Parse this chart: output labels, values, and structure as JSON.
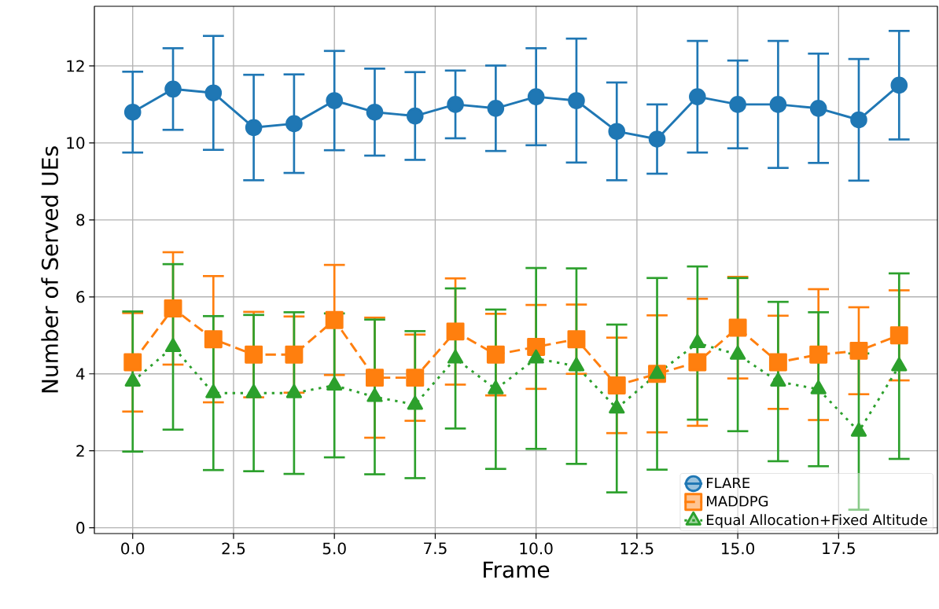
{
  "chart_data": {
    "type": "line",
    "xlabel": "Frame",
    "ylabel": "Number of Served UEs",
    "x": [
      0,
      1,
      2,
      3,
      4,
      5,
      6,
      7,
      8,
      9,
      10,
      11,
      12,
      13,
      14,
      15,
      16,
      17,
      18,
      19
    ],
    "series": [
      {
        "name": "FLARE",
        "color": "#1f77b4",
        "marker": "circle",
        "line_style": "solid",
        "values": [
          10.8,
          11.4,
          11.3,
          10.4,
          10.5,
          11.1,
          10.8,
          10.7,
          11.0,
          10.9,
          11.2,
          11.1,
          10.3,
          10.1,
          11.2,
          11.0,
          11.0,
          10.9,
          10.6,
          11.5
        ],
        "errors": [
          1.05,
          1.06,
          1.48,
          1.37,
          1.28,
          1.29,
          1.13,
          1.14,
          0.88,
          1.11,
          1.26,
          1.61,
          1.27,
          0.9,
          1.45,
          1.14,
          1.65,
          1.42,
          1.58,
          1.41
        ]
      },
      {
        "name": "MADDPG",
        "color": "#ff7f0e",
        "marker": "square",
        "line_style": "dashed",
        "values": [
          4.3,
          5.7,
          4.9,
          4.5,
          4.5,
          5.4,
          3.9,
          3.9,
          5.1,
          4.5,
          4.7,
          4.9,
          3.7,
          4.0,
          4.3,
          5.2,
          4.3,
          4.5,
          4.6,
          5.0
        ],
        "errors": [
          1.28,
          1.46,
          1.64,
          1.11,
          0.99,
          1.43,
          1.56,
          1.12,
          1.38,
          1.06,
          1.09,
          0.9,
          1.24,
          1.52,
          1.65,
          1.32,
          1.21,
          1.7,
          1.13,
          1.17
        ]
      },
      {
        "name": "Equal Allocation+Fixed Altitude",
        "color": "#2ca02c",
        "marker": "triangle",
        "line_style": "dotted",
        "values": [
          3.8,
          4.7,
          3.5,
          3.5,
          3.5,
          3.7,
          3.4,
          3.2,
          4.4,
          3.6,
          4.4,
          4.2,
          3.1,
          4.0,
          4.8,
          4.5,
          3.8,
          3.6,
          2.5,
          4.2
        ],
        "errors": [
          1.82,
          2.15,
          2.0,
          2.03,
          2.1,
          1.87,
          2.01,
          1.91,
          1.82,
          2.07,
          2.35,
          2.54,
          2.18,
          2.49,
          1.99,
          1.99,
          2.07,
          2.0,
          2.03,
          2.41
        ]
      }
    ],
    "xlim": [
      -0.95,
      19.95
    ],
    "ylim": [
      -0.15,
      13.55
    ],
    "xticks": [
      {
        "value": 0,
        "label": "0.0"
      },
      {
        "value": 2.5,
        "label": "2.5"
      },
      {
        "value": 5,
        "label": "5.0"
      },
      {
        "value": 7.5,
        "label": "7.5"
      },
      {
        "value": 10,
        "label": "10.0"
      },
      {
        "value": 12.5,
        "label": "12.5"
      },
      {
        "value": 15,
        "label": "15.0"
      },
      {
        "value": 17.5,
        "label": "17.5"
      }
    ],
    "yticks": [
      0,
      2,
      4,
      6,
      8,
      10,
      12
    ],
    "grid": true,
    "legend": "bottom right"
  }
}
